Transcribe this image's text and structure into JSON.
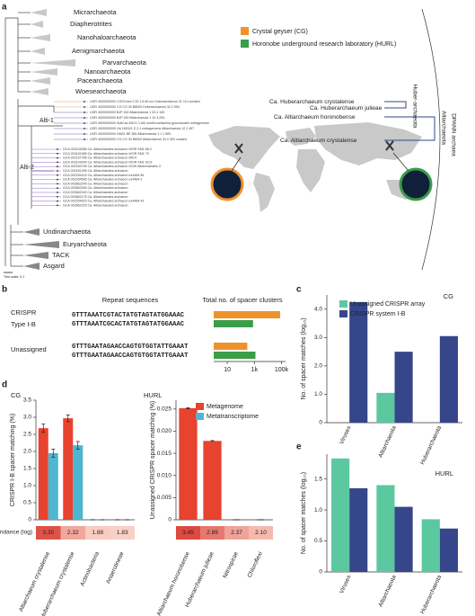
{
  "figure": {
    "a": {
      "label": "a",
      "legend": [
        "Crystal geyser (CG)",
        "Horonobe underground research laboratory (HURL)"
      ],
      "clades": [
        "Micrarchaeota",
        "Diapherotrites",
        "Nanohaloarchaeota",
        "Aenigmarchaeota",
        "Parvarchaeota",
        "Nanoarchaeota",
        "Pacearchaeota",
        "Woesearchaeota",
        "Undinarchaeota",
        "Euryarchaeota",
        "TACK",
        "Asgard"
      ],
      "subclades": [
        "Alti-1",
        "Alti-2"
      ],
      "highlight": [
        "Ca. Huberarchaeum crystalense",
        "Ca. Huberarchaeum julieae",
        "Ca. Altiarchaeum horonobense",
        "Ca. Altiarchaeum crystalense"
      ],
      "leaves": [
        "UGR 4000000000 CG03 bed 0 20 1.6 60 ccr Huberarchaeum 31 114 curated",
        "UGR 4000000000 CG CO 30 B8000 Huberarchaeum 32 2 954",
        "UGR 4000000000 BJP 162 Altiarchaeota 1 03 4 153",
        "UGR 4000000000 BJP 250 Altiarchaeota 1 10 3,254",
        "UGR 4000000000 SulfCav ASO1 1 Alti nonthi contamina groundwater metagenome",
        "UGR 4000000000 HA 180321 E 2-1 metagenome Altiarchaeota 12 2 457",
        "UGR 4000000000 HURL BE 385 Altiarchaeota 1 1 1 583",
        "UGR 4000000000 CG CO 30 B8000 Altiarchaeum 33 2.303 curated",
        "GCA 003143085 Ca. Altiarchaeales archaeon WOR SM1 86-2",
        "GCA 003151385 Ca. Altiarchaeales archaeon WOR SM1 79",
        "GCA 002167785 Ca. Altiarchaeales archaeon IMC4",
        "GCA 003143045 Ca. Altiarchaeales archaeon WOR SM1 SCG",
        "GCA 002254795 Ca. Altiarchaeales archaeon HGW Altiarchaeales-3",
        "GCA 003151395 Ca. Altiarchaeales archaeon",
        "GCA 002254415 Ca. Altiarchaeales archaeon ex4484 96",
        "GCA 002254585 Ca. Altiarchaeales archaeon ex4484 2",
        "GCA 003662345 Ca. Altiarchaeales archaeon",
        "GCA 003662055 Ca. Altiarchaeales archaeon",
        "GCA 003662115 Ca. Altiarchaeales archaeon",
        "GCA 003662175 Ca. Altiarchaeales archaeon",
        "GCA 002254615 Ca. Altiarchaeales archaeon ex4484 43",
        "GCA 003662225 Ca. Altiarchaeales archaeon"
      ],
      "groups": [
        "DPANN archaea",
        "Huber-archaeota",
        "Altiarchaeota"
      ],
      "scale": "Tree scale: 0.1"
    },
    "b": {
      "label": "b",
      "col1": "Repeat sequences",
      "col2": "Total no. of spacer clusters",
      "rows": [
        {
          "label": "CRISPR",
          "sublabel": "Type I-B",
          "seqs": [
            "GTTTAAATCGTACTATGTAGTATGGAAAC",
            "GTTTAAATCGCACTATGTAGTATGGAAAC"
          ]
        },
        {
          "label": "Unassigned",
          "seqs": [
            "GTTTGAATAGAACCAGTGTGGTATTGAAAT",
            "GTTTGAATAGAACCAGTGTGGTATTGAAAT"
          ]
        }
      ],
      "colors": [
        "#f0922b",
        "#3a9d48"
      ]
    },
    "c": {
      "label": "c"
    },
    "d": {
      "label": "d",
      "abundance_label": "Genome abundance (log)"
    },
    "e": {
      "label": "e"
    }
  },
  "chart_data": [
    {
      "type": "barh",
      "log": true,
      "xlim": [
        1,
        200000
      ],
      "xticks": [
        10,
        {
          "value": 1000,
          "label": "1k"
        },
        {
          "value": 100000,
          "label": "100k"
        }
      ],
      "series": [
        {
          "color": "#f0922b",
          "values": [
            80000,
            300
          ]
        },
        {
          "color": "#3a9d48",
          "values": [
            800,
            1200
          ]
        }
      ]
    },
    {
      "type": "bar",
      "site": "CG",
      "site_color": "#f0922b",
      "ylabel": "No. of spacer matches (log₁₀)",
      "categories": [
        "Viruses",
        "Altiarchaeota",
        "Huberarchaeota"
      ],
      "series": [
        {
          "name": "Unassigned CRISPR array",
          "color": "#5cc8a0",
          "values": [
            null,
            1.05,
            null
          ]
        },
        {
          "name": "CRISPR system I-B",
          "color": "#36468a",
          "values": [
            4.25,
            2.5,
            3.05
          ]
        }
      ],
      "ylim": [
        0,
        4.5
      ],
      "yticks": [
        0,
        {
          "value": 1,
          "label": "1.0"
        },
        {
          "value": 2,
          "label": "2.0"
        },
        {
          "value": 3,
          "label": "3.0"
        },
        {
          "value": 4,
          "label": "4.0"
        }
      ]
    },
    {
      "type": "bar",
      "site": "CG",
      "site_color": "#f0922b",
      "ylabel": "CRISPR I-B spacer matching (%)",
      "categories": [
        "Altiarchaeum crystalense",
        "Huberarchaeum crystalense",
        "Actinobacteria",
        "Anaerolineae"
      ],
      "series": [
        {
          "color": "#e8432f",
          "values": [
            2.68,
            2.97,
            0,
            0
          ],
          "errors": [
            0.12,
            0.1,
            0,
            0
          ]
        },
        {
          "color": "#4db6d0",
          "values": [
            1.95,
            2.18,
            0,
            0
          ],
          "errors": [
            0.12,
            0.11,
            0,
            0
          ]
        }
      ],
      "ylim": [
        0,
        3.5
      ],
      "yticks": [
        0,
        0.5,
        {
          "value": 1,
          "label": "1.0"
        },
        1.5,
        {
          "value": 2,
          "label": "2.0"
        },
        2.5,
        {
          "value": 3,
          "label": "3.0"
        },
        3.5
      ],
      "abundance": [
        3.35,
        2.32,
        1.88,
        1.83
      ],
      "abundance_labels": [
        "3.35",
        "2.32",
        "1.88",
        "1.83"
      ]
    },
    {
      "type": "bar",
      "site": "HURL",
      "site_color": "#3a9d48",
      "ylabel": "Unassigned CRISPR spacer matching (%)",
      "categories": [
        "Altiarchaeum horonobense",
        "Huberarchaeum julieae",
        "Nitrospirae",
        "Chloroflexi"
      ],
      "series": [
        {
          "name": "Metagenome",
          "color": "#e8432f",
          "values": [
            0.0252,
            0.0178,
            0,
            0
          ],
          "errors": [
            0.0001,
            0.0001,
            0,
            0
          ]
        },
        {
          "name": "Metatranscriptome",
          "color": "#4db6d0",
          "values": [
            null,
            null,
            null,
            null
          ]
        }
      ],
      "ylim": [
        0,
        0.027
      ],
      "yticks": [
        0,
        0.005,
        {
          "value": 0.01,
          "label": "0.010"
        },
        0.015,
        {
          "value": 0.02,
          "label": "0.020"
        },
        0.025
      ],
      "abundance": [
        3.45,
        2.89,
        2.37,
        2.1
      ],
      "abundance_labels": [
        "3.45",
        "2.89",
        "2.37",
        "2.10"
      ]
    },
    {
      "type": "bar",
      "site": "HURL",
      "site_color": "#3a9d48",
      "ylabel": "No. of spacer matches (log₁₀)",
      "categories": [
        "Viruses",
        "Altiarchaeota",
        "Huberarchaeota"
      ],
      "series": [
        {
          "color": "#5cc8a0",
          "values": [
            1.83,
            1.4,
            0.85
          ]
        },
        {
          "color": "#36468a",
          "values": [
            1.35,
            1.05,
            0.7
          ]
        }
      ],
      "ylim": [
        0,
        1.9
      ],
      "yticks": [
        0,
        0.5,
        {
          "value": 1,
          "label": "1.0"
        },
        1.5
      ]
    }
  ]
}
